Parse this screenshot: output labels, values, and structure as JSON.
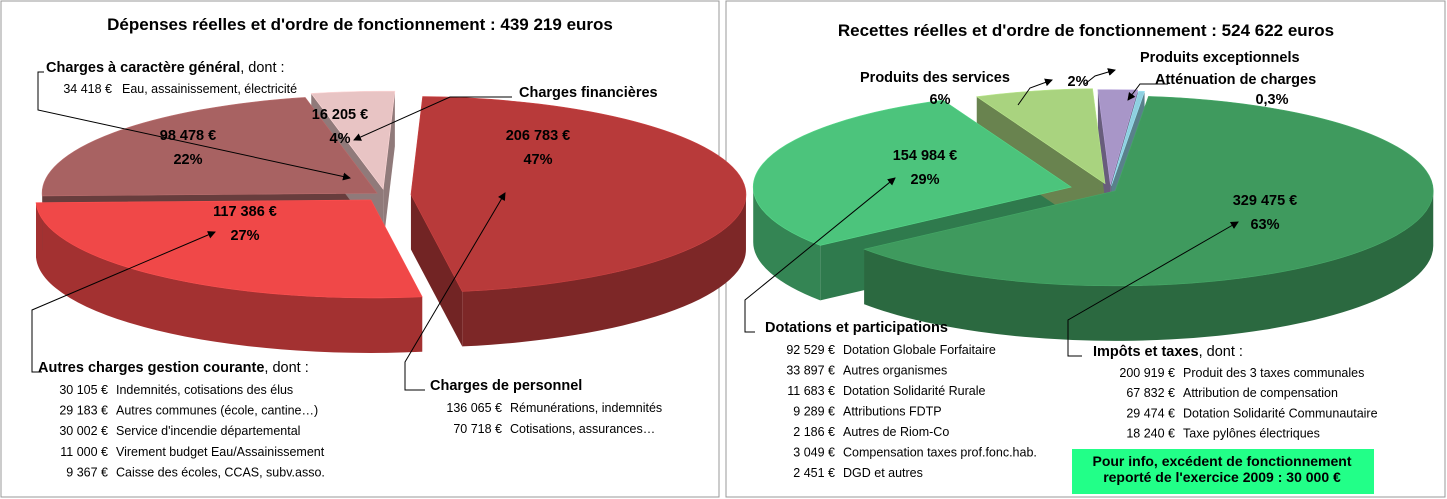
{
  "chart_data": [
    {
      "type": "pie",
      "title": "Dépenses réelles et d'ordre de fonctionnement  : 439 219 euros",
      "categories": [
        "Charges de personnel",
        "Autres charges gestion courante",
        "Charges à caractère général",
        "Charges financières"
      ],
      "values": [
        47,
        27,
        22,
        4
      ],
      "value_labels": [
        "47%",
        "27%",
        "22%",
        "4%"
      ],
      "amounts": [
        206783,
        117386,
        98478,
        16205
      ],
      "amount_labels": [
        "206 783 €",
        "117 386 €",
        "98 478 €",
        "16 205 €"
      ],
      "colors": [
        "#b83a3a",
        "#f04848",
        "#a86262",
        "#e8c4c4"
      ],
      "details": [
        {
          "items": [
            {
              "value": 136065,
              "value_label": "136 065 €",
              "text": "Rémunérations, indemnités"
            },
            {
              "value": 70718,
              "value_label": "70 718 €",
              "text": "Cotisations, assurances…"
            }
          ]
        },
        {
          "suffix": ", dont :",
          "items": [
            {
              "value": 30105,
              "value_label": "30 105 €",
              "text": "Indemnités, cotisations des élus"
            },
            {
              "value": 29183,
              "value_label": "29 183 €",
              "text": "Autres communes  (école, cantine…)"
            },
            {
              "value": 30002,
              "value_label": "30 002 €",
              "text": "Service d'incendie départemental"
            },
            {
              "value": 11000,
              "value_label": "11 000 €",
              "text": "Virement budget Eau/Assainissement"
            },
            {
              "value": 9367,
              "value_label": "9 367 €",
              "text": "Caisse des écoles, CCAS, subv.asso."
            }
          ]
        },
        {
          "suffix": ", dont :",
          "items": [
            {
              "value": 34418,
              "value_label": "34 418 €",
              "text": "Eau, assainissement, électricité"
            }
          ]
        },
        null
      ]
    },
    {
      "type": "pie",
      "title": "Recettes réelles et d'ordre de fonctionnement : 524 622 euros",
      "categories": [
        "Impôts et taxes",
        "Dotations et participations",
        "Produits des services",
        "Produits exceptionnels",
        "Atténuation de charges"
      ],
      "values": [
        63,
        29,
        6,
        2,
        0.3
      ],
      "value_labels": [
        "63%",
        "29%",
        "6%",
        "2%",
        "0,3%"
      ],
      "amounts": [
        329475,
        154984,
        null,
        null,
        null
      ],
      "amount_labels": [
        "329 475 €",
        "154 984 €",
        null,
        null,
        null
      ],
      "colors": [
        "#3f9a5e",
        "#4cc47c",
        "#a9d37f",
        "#a896c8",
        "#8fd0e0"
      ],
      "details": [
        {
          "suffix": ", dont :",
          "items": [
            {
              "value": 200919,
              "value_label": "200 919 €",
              "text": "Produit des 3 taxes communales"
            },
            {
              "value": 67832,
              "value_label": "67 832 €",
              "text": "Attribution de compensation"
            },
            {
              "value": 29474,
              "value_label": "29 474 €",
              "text": "Dotation Solidarité Communautaire"
            },
            {
              "value": 18240,
              "value_label": "18 240 €",
              "text": "Taxe pylônes électriques"
            }
          ]
        },
        {
          "items": [
            {
              "value": 92529,
              "value_label": "92 529 €",
              "text": "Dotation Globale Forfaitaire"
            },
            {
              "value": 33897,
              "value_label": "33 897 €",
              "text": "Autres organismes"
            },
            {
              "value": 11683,
              "value_label": "11 683 €",
              "text": "Dotation Solidarité Rurale"
            },
            {
              "value": 9289,
              "value_label": "9 289 €",
              "text": "Attributions FDTP"
            },
            {
              "value": 2186,
              "value_label": "2 186 €",
              "text": "Autres de Riom-Co"
            },
            {
              "value": 3049,
              "value_label": "3 049 €",
              "text": "Compensation taxes prof.fonc.hab."
            },
            {
              "value": 2451,
              "value_label": "2 451 €",
              "text": "DGD et autres"
            }
          ]
        },
        null,
        null,
        null
      ],
      "note": [
        "Pour info, excédent de fonctionnement",
        "reporté de l'exercice 2009 : 30 000 €"
      ]
    }
  ]
}
